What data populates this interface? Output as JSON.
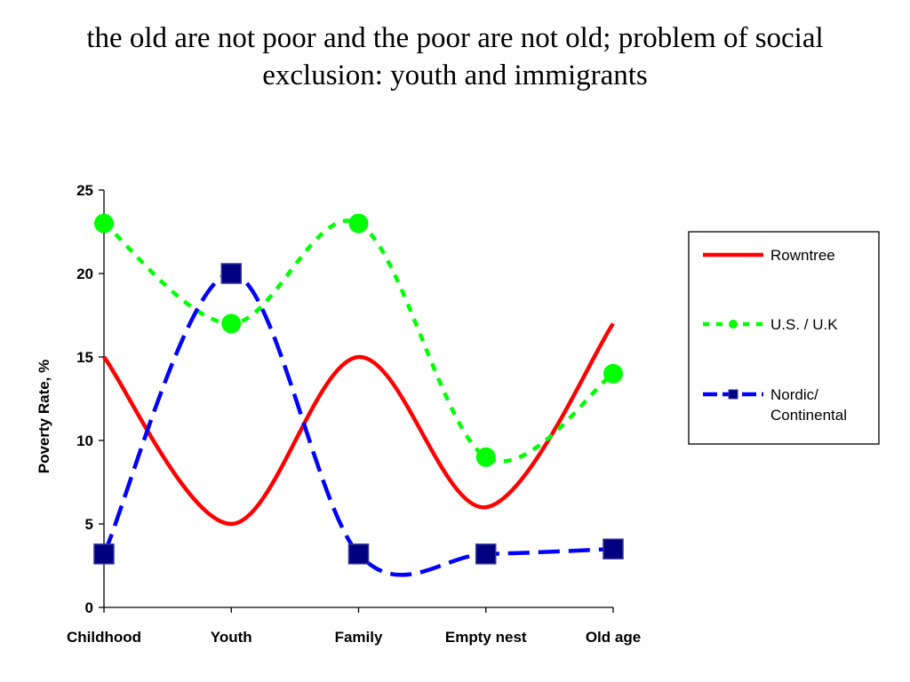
{
  "slide": {
    "title_line1": "the old are not poor and the poor are not old; problem of social",
    "title_line2": "exclusion: youth and immigrants"
  },
  "chart_data": {
    "type": "line",
    "categories": [
      "Childhood",
      "Youth",
      "Family",
      "Empty nest",
      "Old age"
    ],
    "ylabel": "Poverty Rate, %",
    "xlabel": "",
    "ylim": [
      0,
      25
    ],
    "yticks": [
      "0",
      "5",
      "10",
      "15",
      "20",
      "25"
    ],
    "grid": false,
    "legend_position": "right",
    "series": [
      {
        "name": "Rowntree",
        "values": [
          15,
          5,
          15,
          6,
          17
        ],
        "color": "#ff0000",
        "line_style": "solid",
        "marker": "none"
      },
      {
        "name": "U.S. / U.K",
        "values": [
          23,
          17,
          23,
          9,
          14
        ],
        "color": "#00ff00",
        "line_style": "dotted",
        "marker": "circle"
      },
      {
        "name_lines": [
          "Nordic/",
          "Continental"
        ],
        "values": [
          3.2,
          20,
          3.2,
          3.2,
          3.5
        ],
        "color": "#0000ff",
        "marker_color": "#000080",
        "line_style": "dashed",
        "marker": "square"
      }
    ]
  }
}
